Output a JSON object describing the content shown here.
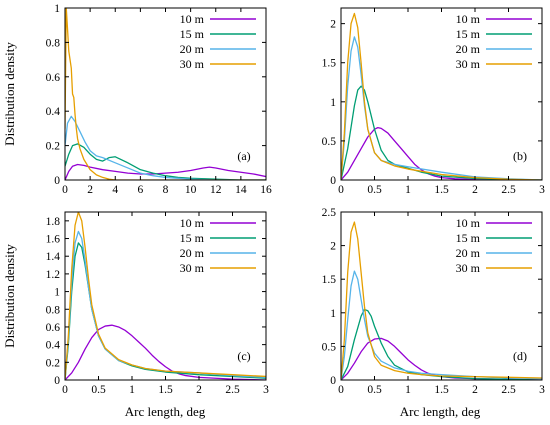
{
  "figure": {
    "ylabel": "Distribution density",
    "xlabel": "Arc length, deg"
  },
  "chart_data": [
    {
      "type": "line",
      "panel_label": "(a)",
      "xlim": [
        0,
        16
      ],
      "ylim": [
        0,
        1.0
      ],
      "xticks": [
        "0",
        "2",
        "4",
        "6",
        "8",
        "10",
        "12",
        "14",
        "16"
      ],
      "xtick_values": [
        0,
        2,
        4,
        6,
        8,
        10,
        12,
        14,
        16
      ],
      "yticks": [
        "0",
        "0.2",
        "0.4",
        "0.6",
        "0.8",
        "1"
      ],
      "ytick_values": [
        0,
        0.2,
        0.4,
        0.6,
        0.8,
        1.0
      ],
      "grid": false,
      "legend_position": "top-right",
      "series": [
        {
          "name": "10 m",
          "color": "#9400D3",
          "x": [
            0,
            0.3,
            0.6,
            1,
            1.5,
            2,
            3,
            4,
            5,
            6,
            7,
            8,
            9,
            10,
            11,
            11.5,
            12,
            13,
            14,
            15,
            16
          ],
          "y": [
            0.0,
            0.05,
            0.08,
            0.09,
            0.085,
            0.075,
            0.06,
            0.05,
            0.04,
            0.035,
            0.035,
            0.04,
            0.045,
            0.055,
            0.07,
            0.075,
            0.07,
            0.055,
            0.045,
            0.035,
            0.02
          ]
        },
        {
          "name": "15 m",
          "color": "#009E73",
          "x": [
            0,
            0.3,
            0.6,
            1,
            1.5,
            2,
            2.5,
            3,
            3.5,
            4,
            5,
            6,
            7,
            8,
            9,
            10,
            12,
            14,
            16
          ],
          "y": [
            0.08,
            0.15,
            0.2,
            0.21,
            0.19,
            0.15,
            0.12,
            0.11,
            0.13,
            0.135,
            0.1,
            0.06,
            0.04,
            0.025,
            0.015,
            0.01,
            0.005,
            0.0,
            0.0
          ]
        },
        {
          "name": "20 m",
          "color": "#56B4E9",
          "x": [
            0,
            0.2,
            0.5,
            0.8,
            1.2,
            1.6,
            2,
            2.5,
            3,
            4,
            5,
            6,
            7,
            8,
            10,
            12,
            16
          ],
          "y": [
            0.2,
            0.33,
            0.37,
            0.34,
            0.28,
            0.22,
            0.17,
            0.14,
            0.13,
            0.1,
            0.07,
            0.04,
            0.025,
            0.015,
            0.005,
            0.0,
            0.0
          ]
        },
        {
          "name": "30 m",
          "color": "#E69F00",
          "x": [
            0,
            0.1,
            0.2,
            0.3,
            0.4,
            0.5,
            0.6,
            0.7,
            0.8,
            0.9,
            1.0,
            1.2,
            1.5,
            2,
            2.5,
            3,
            3.5,
            4,
            5,
            16
          ],
          "y": [
            0.3,
            1.0,
            0.88,
            0.75,
            0.7,
            0.65,
            0.5,
            0.48,
            0.38,
            0.3,
            0.24,
            0.18,
            0.12,
            0.06,
            0.03,
            0.015,
            0.005,
            0.0,
            0.0,
            0.0
          ]
        }
      ]
    },
    {
      "type": "line",
      "panel_label": "(b)",
      "xlim": [
        0,
        3
      ],
      "ylim": [
        0,
        2.2
      ],
      "xticks": [
        "0",
        "0.5",
        "1",
        "1.5",
        "2",
        "2.5",
        "3"
      ],
      "xtick_values": [
        0,
        0.5,
        1,
        1.5,
        2,
        2.5,
        3
      ],
      "yticks": [
        "0",
        "0.5",
        "1",
        "1.5",
        "2"
      ],
      "ytick_values": [
        0,
        0.5,
        1,
        1.5,
        2
      ],
      "grid": false,
      "legend_position": "top-right",
      "series": [
        {
          "name": "10 m",
          "color": "#9400D3",
          "x": [
            0,
            0.1,
            0.2,
            0.3,
            0.4,
            0.5,
            0.55,
            0.6,
            0.7,
            0.8,
            0.9,
            1.0,
            1.1,
            1.2,
            1.3,
            1.4,
            1.5,
            1.7,
            2.0,
            2.5,
            3.0
          ],
          "y": [
            0,
            0.1,
            0.25,
            0.4,
            0.55,
            0.65,
            0.67,
            0.66,
            0.6,
            0.5,
            0.4,
            0.3,
            0.2,
            0.13,
            0.08,
            0.05,
            0.03,
            0.015,
            0.005,
            0.0,
            0.0
          ]
        },
        {
          "name": "15 m",
          "color": "#009E73",
          "x": [
            0,
            0.1,
            0.2,
            0.25,
            0.3,
            0.35,
            0.4,
            0.5,
            0.6,
            0.7,
            0.8,
            1.0,
            1.2,
            1.5,
            2.0,
            2.5,
            3.0
          ],
          "y": [
            0,
            0.4,
            0.95,
            1.15,
            1.2,
            1.15,
            1.0,
            0.65,
            0.38,
            0.25,
            0.2,
            0.15,
            0.1,
            0.05,
            0.02,
            0.01,
            0.0
          ]
        },
        {
          "name": "20 m",
          "color": "#56B4E9",
          "x": [
            0,
            0.05,
            0.1,
            0.15,
            0.2,
            0.25,
            0.3,
            0.35,
            0.4,
            0.5,
            0.6,
            0.8,
            1.0,
            1.5,
            2.0,
            2.5,
            3.0
          ],
          "y": [
            0,
            0.5,
            1.2,
            1.65,
            1.83,
            1.7,
            1.35,
            0.95,
            0.65,
            0.35,
            0.25,
            0.2,
            0.17,
            0.1,
            0.04,
            0.015,
            0.0
          ]
        },
        {
          "name": "30 m",
          "color": "#E69F00",
          "x": [
            0,
            0.05,
            0.1,
            0.15,
            0.2,
            0.25,
            0.3,
            0.35,
            0.4,
            0.5,
            0.6,
            0.8,
            1.0,
            1.5,
            2.0,
            2.5,
            3.0
          ],
          "y": [
            0,
            0.6,
            1.5,
            2.0,
            2.13,
            1.95,
            1.5,
            1.0,
            0.65,
            0.35,
            0.25,
            0.18,
            0.14,
            0.07,
            0.03,
            0.01,
            0.0
          ]
        }
      ]
    },
    {
      "type": "line",
      "panel_label": "(c)",
      "xlim": [
        0,
        3
      ],
      "ylim": [
        0,
        1.9
      ],
      "xticks": [
        "0",
        "0.5",
        "1",
        "1.5",
        "2",
        "2.5",
        "3"
      ],
      "xtick_values": [
        0,
        0.5,
        1,
        1.5,
        2,
        2.5,
        3
      ],
      "yticks": [
        "0",
        "0.2",
        "0.4",
        "0.6",
        "0.8",
        "1",
        "1.2",
        "1.4",
        "1.6",
        "1.8"
      ],
      "ytick_values": [
        0,
        0.2,
        0.4,
        0.6,
        0.8,
        1.0,
        1.2,
        1.4,
        1.6,
        1.8
      ],
      "grid": false,
      "legend_position": "top-right",
      "series": [
        {
          "name": "10 m",
          "color": "#9400D3",
          "x": [
            0,
            0.1,
            0.2,
            0.3,
            0.4,
            0.5,
            0.6,
            0.7,
            0.8,
            0.9,
            1.0,
            1.1,
            1.2,
            1.3,
            1.4,
            1.5,
            1.6,
            1.7,
            1.8,
            2.0,
            2.5,
            3.0
          ],
          "y": [
            0,
            0.08,
            0.2,
            0.35,
            0.48,
            0.57,
            0.61,
            0.62,
            0.6,
            0.56,
            0.5,
            0.43,
            0.36,
            0.28,
            0.21,
            0.15,
            0.1,
            0.07,
            0.05,
            0.03,
            0.01,
            0.0
          ]
        },
        {
          "name": "15 m",
          "color": "#009E73",
          "x": [
            0,
            0.05,
            0.1,
            0.15,
            0.2,
            0.25,
            0.3,
            0.35,
            0.4,
            0.5,
            0.6,
            0.8,
            1.0,
            1.2,
            1.5,
            2.0,
            2.5,
            3.0
          ],
          "y": [
            0,
            0.4,
            1.0,
            1.4,
            1.55,
            1.5,
            1.3,
            1.05,
            0.8,
            0.5,
            0.35,
            0.22,
            0.16,
            0.12,
            0.09,
            0.06,
            0.04,
            0.02
          ]
        },
        {
          "name": "20 m",
          "color": "#56B4E9",
          "x": [
            0,
            0.05,
            0.1,
            0.15,
            0.2,
            0.25,
            0.3,
            0.35,
            0.4,
            0.5,
            0.6,
            0.8,
            1.0,
            1.2,
            1.5,
            2.0,
            2.5,
            3.0
          ],
          "y": [
            0,
            0.45,
            1.1,
            1.55,
            1.68,
            1.6,
            1.35,
            1.05,
            0.8,
            0.5,
            0.35,
            0.22,
            0.17,
            0.13,
            0.1,
            0.08,
            0.05,
            0.03
          ]
        },
        {
          "name": "30 m",
          "color": "#E69F00",
          "x": [
            0,
            0.05,
            0.1,
            0.15,
            0.2,
            0.25,
            0.3,
            0.35,
            0.4,
            0.5,
            0.6,
            0.8,
            1.0,
            1.2,
            1.5,
            2.0,
            2.5,
            3.0
          ],
          "y": [
            0,
            0.5,
            1.25,
            1.75,
            1.9,
            1.8,
            1.5,
            1.15,
            0.85,
            0.52,
            0.36,
            0.23,
            0.17,
            0.13,
            0.1,
            0.08,
            0.06,
            0.04
          ]
        }
      ]
    },
    {
      "type": "line",
      "panel_label": "(d)",
      "xlim": [
        0,
        3
      ],
      "ylim": [
        0,
        2.5
      ],
      "xticks": [
        "0",
        "0.5",
        "1",
        "1.5",
        "2",
        "2.5",
        "3"
      ],
      "xtick_values": [
        0,
        0.5,
        1,
        1.5,
        2,
        2.5,
        3
      ],
      "yticks": [
        "0",
        "0.5",
        "1",
        "1.5",
        "2",
        "2.5"
      ],
      "ytick_values": [
        0,
        0.5,
        1,
        1.5,
        2,
        2.5
      ],
      "grid": false,
      "legend_position": "top-right",
      "series": [
        {
          "name": "10 m",
          "color": "#9400D3",
          "x": [
            0,
            0.1,
            0.2,
            0.3,
            0.4,
            0.5,
            0.6,
            0.7,
            0.8,
            0.9,
            1.0,
            1.1,
            1.2,
            1.3,
            1.4,
            1.5,
            1.7,
            2.0,
            2.5,
            3.0
          ],
          "y": [
            0,
            0.1,
            0.25,
            0.42,
            0.55,
            0.61,
            0.62,
            0.58,
            0.5,
            0.4,
            0.3,
            0.22,
            0.15,
            0.1,
            0.07,
            0.05,
            0.03,
            0.02,
            0.01,
            0.0
          ]
        },
        {
          "name": "15 m",
          "color": "#009E73",
          "x": [
            0,
            0.1,
            0.2,
            0.3,
            0.35,
            0.4,
            0.45,
            0.5,
            0.6,
            0.7,
            0.8,
            1.0,
            1.2,
            1.5,
            2.0,
            2.5,
            3.0
          ],
          "y": [
            0,
            0.2,
            0.6,
            0.95,
            1.05,
            1.03,
            0.95,
            0.8,
            0.55,
            0.35,
            0.22,
            0.12,
            0.08,
            0.05,
            0.02,
            0.01,
            0.0
          ]
        },
        {
          "name": "20 m",
          "color": "#56B4E9",
          "x": [
            0,
            0.05,
            0.1,
            0.15,
            0.2,
            0.25,
            0.3,
            0.35,
            0.4,
            0.5,
            0.6,
            0.8,
            1.0,
            1.2,
            1.5,
            2.0,
            2.5,
            3.0
          ],
          "y": [
            0,
            0.35,
            0.9,
            1.4,
            1.62,
            1.5,
            1.2,
            0.9,
            0.65,
            0.4,
            0.28,
            0.18,
            0.13,
            0.1,
            0.08,
            0.05,
            0.03,
            0.02
          ]
        },
        {
          "name": "30 m",
          "color": "#E69F00",
          "x": [
            0,
            0.05,
            0.1,
            0.15,
            0.2,
            0.25,
            0.3,
            0.35,
            0.4,
            0.5,
            0.6,
            0.8,
            1.0,
            1.2,
            1.5,
            2.0,
            2.5,
            3.0
          ],
          "y": [
            0,
            0.6,
            1.6,
            2.2,
            2.35,
            2.1,
            1.6,
            1.1,
            0.7,
            0.35,
            0.22,
            0.14,
            0.1,
            0.08,
            0.06,
            0.05,
            0.04,
            0.03
          ]
        }
      ]
    }
  ]
}
